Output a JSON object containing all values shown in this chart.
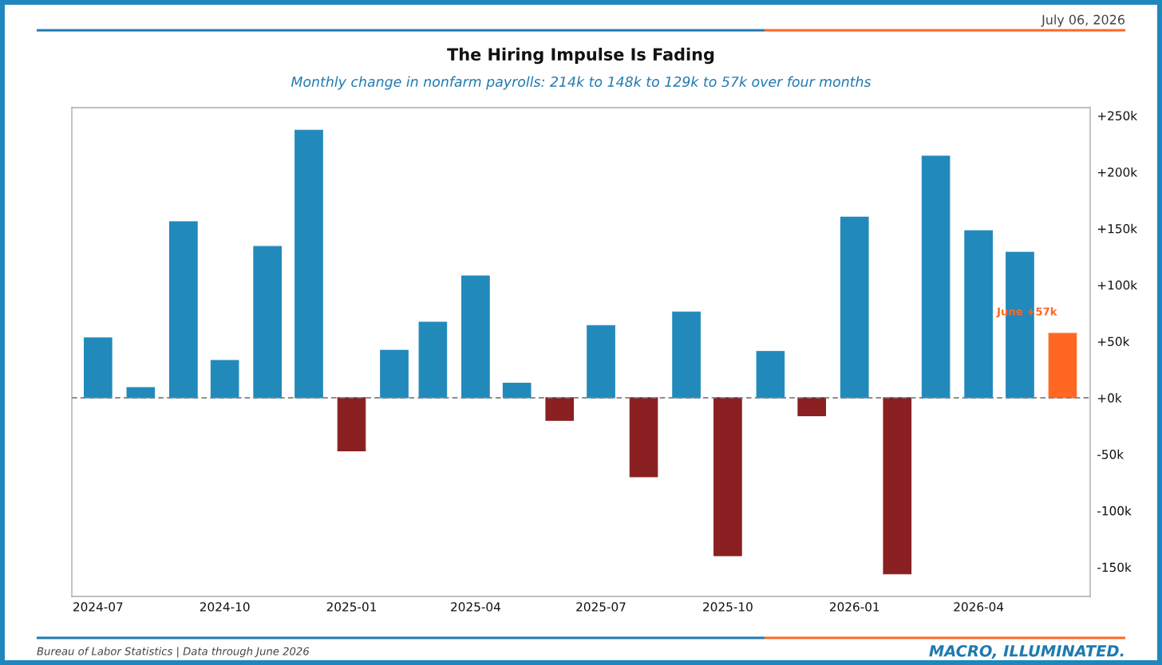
{
  "chart_data": {
    "type": "bar",
    "title": "The Hiring Impulse Is Fading",
    "subtitle": "Monthly change in nonfarm payrolls: 214k to 148k to 129k to 57k over four months",
    "x": [
      "2024-07",
      "2024-08",
      "2024-09",
      "2024-10",
      "2024-11",
      "2024-12",
      "2025-01",
      "2025-02",
      "2025-03",
      "2025-04",
      "2025-05",
      "2025-06",
      "2025-07",
      "2025-08",
      "2025-09",
      "2025-10",
      "2025-11",
      "2025-12",
      "2026-01",
      "2026-02",
      "2026-03",
      "2026-04",
      "2026-05",
      "2026-06"
    ],
    "values": [
      53,
      9,
      156,
      33,
      134,
      237,
      -47,
      42,
      67,
      108,
      13,
      -20,
      64,
      -70,
      76,
      -140,
      41,
      -16,
      160,
      -156,
      214,
      148,
      129,
      57
    ],
    "colors": [
      "#2289bb",
      "#2289bb",
      "#2289bb",
      "#2289bb",
      "#2289bb",
      "#2289bb",
      "#8a2022",
      "#2289bb",
      "#2289bb",
      "#2289bb",
      "#2289bb",
      "#8a2022",
      "#2289bb",
      "#8a2022",
      "#2289bb",
      "#8a2022",
      "#2289bb",
      "#8a2022",
      "#2289bb",
      "#8a2022",
      "#2289bb",
      "#2289bb",
      "#2289bb",
      "#ff6722"
    ],
    "xlim": [
      "2024-06-12",
      "2026-06-21"
    ],
    "xticks": [
      "2024-07",
      "2024-10",
      "2025-01",
      "2025-04",
      "2025-07",
      "2025-10",
      "2026-01",
      "2026-04"
    ],
    "ylim": [
      -176,
      257
    ],
    "yticks": [
      {
        "value": -150,
        "label": "-150k"
      },
      {
        "value": -100,
        "label": "-100k"
      },
      {
        "value": -50,
        "label": "-50k"
      },
      {
        "value": 0,
        "label": "+0k"
      },
      {
        "value": 50,
        "label": "+50k"
      },
      {
        "value": 100,
        "label": "+100k"
      },
      {
        "value": 150,
        "label": "+150k"
      },
      {
        "value": 200,
        "label": "+200k"
      },
      {
        "value": 250,
        "label": "+250k"
      }
    ],
    "ref_lines": [
      {
        "axis": "y",
        "value": 0,
        "color": "#808080",
        "line_style": "dashed"
      }
    ],
    "annotations": [
      "July 06, 2026",
      "Bureau of Labor Statistics | Data through June 2026",
      "MACRO, ILLUMINATED.",
      {
        "text": "June +57k",
        "x": "2026-06",
        "y": 57
      }
    ]
  }
}
